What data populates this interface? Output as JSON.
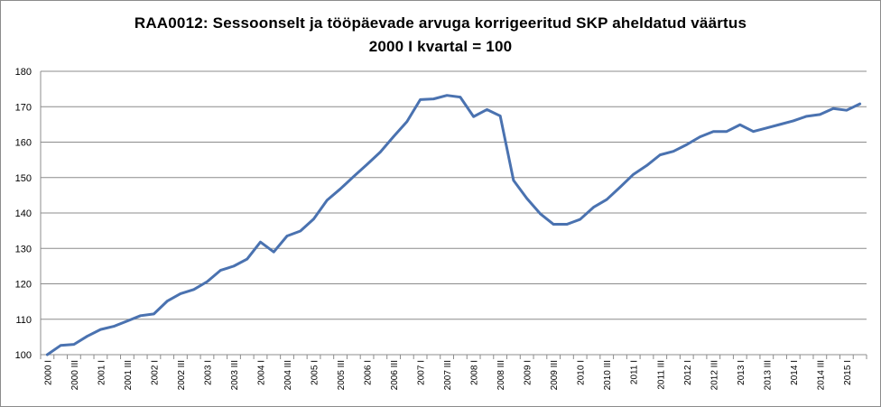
{
  "chart_data": {
    "type": "line",
    "title": "RAA0012: Sessoonselt ja tööpäevade arvuga korrigeeritud SKP aheldatud väärtus",
    "subtitle": "2000 I kvartal = 100",
    "xlabel": "",
    "ylabel": "",
    "ylim": [
      100,
      180
    ],
    "yticks": [
      100,
      110,
      120,
      130,
      140,
      150,
      160,
      170,
      180
    ],
    "grid": true,
    "legend": "none",
    "x": [
      "2000 I",
      "2000 II",
      "2000 III",
      "2000 IV",
      "2001 I",
      "2001 II",
      "2001 III",
      "2001 IV",
      "2002 I",
      "2002 II",
      "2002 III",
      "2002 IV",
      "2003 I",
      "2003 II",
      "2003 III",
      "2003 IV",
      "2004 I",
      "2004 II",
      "2004 III",
      "2004 IV",
      "2005 I",
      "2005 II",
      "2005 III",
      "2005 IV",
      "2006 I",
      "2006 II",
      "2006 III",
      "2006 IV",
      "2007 I",
      "2007 II",
      "2007 III",
      "2007 IV",
      "2008 I",
      "2008 II",
      "2008 III",
      "2008 IV",
      "2009 I",
      "2009 II",
      "2009 III",
      "2009 IV",
      "2010 I",
      "2010 II",
      "2010 III",
      "2010 IV",
      "2011 I",
      "2011 II",
      "2011 III",
      "2011 IV",
      "2012 I",
      "2012 II",
      "2012 III",
      "2012 IV",
      "2013 I",
      "2013 II",
      "2013 III",
      "2013 IV",
      "2014 I",
      "2014 II",
      "2014 III",
      "2014 IV",
      "2015 I",
      "2015 II"
    ],
    "xtick_labels": [
      "2000 I",
      "2000 III",
      "2001 I",
      "2001 III",
      "2002 I",
      "2002 III",
      "2003 I",
      "2003 III",
      "2004 I",
      "2004 III",
      "2005 I",
      "2005 III",
      "2006 I",
      "2006 III",
      "2007 I",
      "2007 III",
      "2008 I",
      "2008 III",
      "2009 I",
      "2009 III",
      "2010 I",
      "2010 III",
      "2011 I",
      "2011 III",
      "2012 I",
      "2012 III",
      "2013 I",
      "2013 III",
      "2014 I",
      "2014 III",
      "2015 I"
    ],
    "series": [
      {
        "color": "#4a72b0",
        "values": [
          100,
          102.6,
          102.9,
          105.2,
          107.1,
          108.0,
          109.5,
          111.0,
          111.5,
          115.1,
          117.2,
          118.4,
          120.6,
          123.8,
          125.0,
          127.0,
          131.8,
          129.0,
          133.5,
          134.9,
          138.3,
          143.6,
          146.8,
          150.3,
          153.7,
          157.2,
          161.6,
          165.8,
          172.0,
          172.2,
          173.2,
          172.7,
          167.2,
          169.2,
          167.4,
          149.2,
          144.1,
          139.8,
          136.8,
          136.8,
          138.2,
          141.6,
          143.8,
          147.3,
          150.9,
          153.4,
          156.4,
          157.4,
          159.3,
          161.5,
          163.0,
          163.0,
          164.9,
          163.0,
          164.0,
          165.0,
          166.0,
          167.3,
          167.8,
          169.5,
          169.0,
          170.8
        ]
      }
    ]
  }
}
